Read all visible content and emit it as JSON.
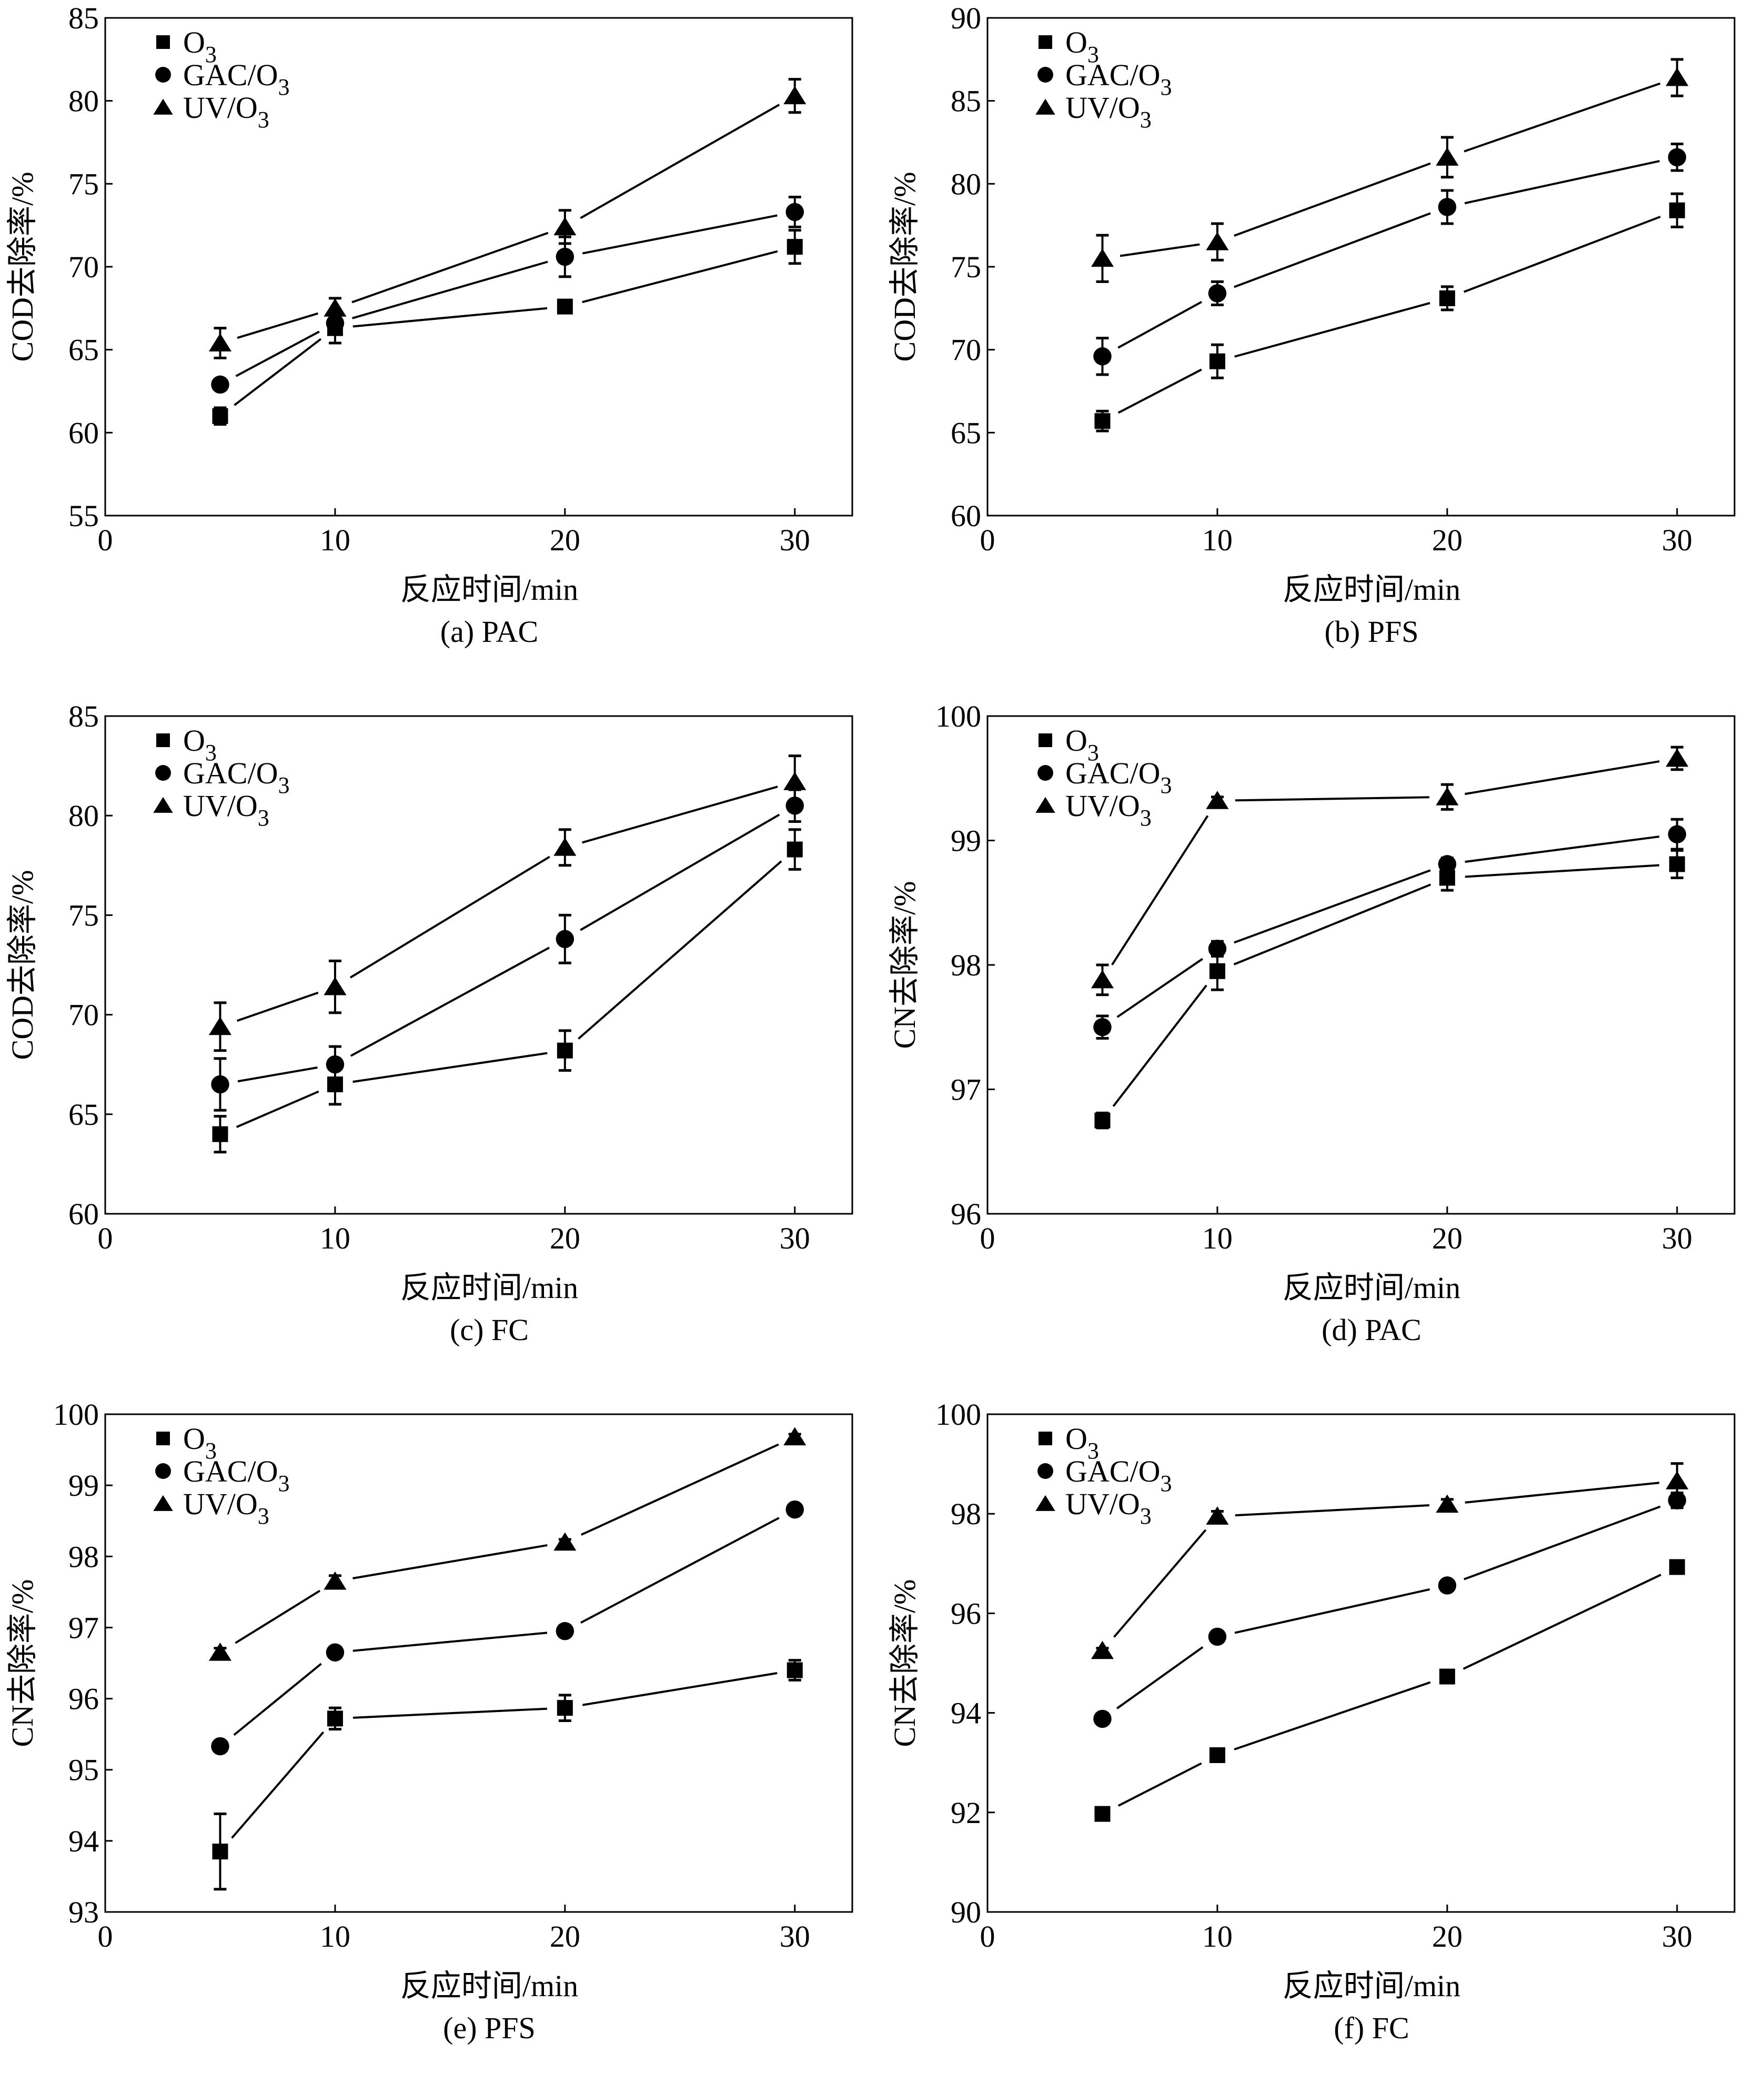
{
  "chart_data": [
    {
      "id": "a",
      "type": "line",
      "caption": "(a) PAC",
      "xlabel": "反应时间/min",
      "ylabel": "COD去除率/%",
      "x": [
        5,
        10,
        20,
        30
      ],
      "xlim": [
        0,
        32.5
      ],
      "xticks": [
        0,
        10,
        20,
        30
      ],
      "ylim": [
        55,
        85
      ],
      "yticks": [
        55,
        60,
        65,
        70,
        75,
        80,
        85
      ],
      "grid": false,
      "legend_position": "top-left",
      "series": [
        {
          "name": "O3",
          "label_main": "O",
          "label_sub": "3",
          "marker": "square",
          "values": [
            61.0,
            66.3,
            67.6,
            71.2
          ],
          "errors": [
            0.5,
            0.9,
            0.3,
            1.0
          ]
        },
        {
          "name": "GAC/O3",
          "label_main": "GAC/O",
          "label_sub": "3",
          "marker": "circle",
          "values": [
            62.9,
            66.6,
            70.6,
            73.3
          ],
          "errors": [
            0.3,
            0.5,
            1.2,
            0.9
          ]
        },
        {
          "name": "UV/O3",
          "label_main": "UV/O",
          "label_sub": "3",
          "marker": "triangle",
          "values": [
            65.4,
            67.5,
            72.4,
            80.3
          ],
          "errors": [
            0.9,
            0.6,
            1.0,
            1.0
          ]
        }
      ]
    },
    {
      "id": "b",
      "type": "line",
      "caption": "(b) PFS",
      "xlabel": "反应时间/min",
      "ylabel": "COD去除率/%",
      "x": [
        5,
        10,
        20,
        30
      ],
      "xlim": [
        0,
        32.5
      ],
      "xticks": [
        0,
        10,
        20,
        30
      ],
      "ylim": [
        60,
        90
      ],
      "yticks": [
        60,
        65,
        70,
        75,
        80,
        85,
        90
      ],
      "grid": false,
      "legend_position": "top-left",
      "series": [
        {
          "name": "O3",
          "label_main": "O",
          "label_sub": "3",
          "marker": "square",
          "values": [
            65.7,
            69.3,
            73.1,
            78.4
          ],
          "errors": [
            0.6,
            1.0,
            0.7,
            1.0
          ]
        },
        {
          "name": "GAC/O3",
          "label_main": "GAC/O",
          "label_sub": "3",
          "marker": "circle",
          "values": [
            69.6,
            73.4,
            78.6,
            81.6
          ],
          "errors": [
            1.1,
            0.7,
            1.0,
            0.8
          ]
        },
        {
          "name": "UV/O3",
          "label_main": "UV/O",
          "label_sub": "3",
          "marker": "triangle",
          "values": [
            75.5,
            76.5,
            81.6,
            86.4
          ],
          "errors": [
            1.4,
            1.1,
            1.2,
            1.1
          ]
        }
      ]
    },
    {
      "id": "c",
      "type": "line",
      "caption": "(c) FC",
      "xlabel": "反应时间/min",
      "ylabel": "COD去除率/%",
      "x": [
        5,
        10,
        20,
        30
      ],
      "xlim": [
        0,
        32.5
      ],
      "xticks": [
        0,
        10,
        20,
        30
      ],
      "ylim": [
        60,
        85
      ],
      "yticks": [
        60,
        65,
        70,
        75,
        80,
        85
      ],
      "grid": false,
      "legend_position": "top-left",
      "series": [
        {
          "name": "O3",
          "label_main": "O",
          "label_sub": "3",
          "marker": "square",
          "values": [
            64.0,
            66.5,
            68.2,
            78.3
          ],
          "errors": [
            0.9,
            1.0,
            1.0,
            1.0
          ]
        },
        {
          "name": "GAC/O3",
          "label_main": "GAC/O",
          "label_sub": "3",
          "marker": "circle",
          "values": [
            66.5,
            67.5,
            73.8,
            80.5
          ],
          "errors": [
            1.3,
            0.9,
            1.2,
            0.8
          ]
        },
        {
          "name": "UV/O3",
          "label_main": "UV/O",
          "label_sub": "3",
          "marker": "triangle",
          "values": [
            69.4,
            71.4,
            78.4,
            81.7
          ],
          "errors": [
            1.2,
            1.3,
            0.9,
            1.3
          ]
        }
      ]
    },
    {
      "id": "d",
      "type": "line",
      "caption": "(d) PAC",
      "xlabel": "反应时间/min",
      "ylabel": "CN去除率/%",
      "x": [
        5,
        10,
        20,
        30
      ],
      "xlim": [
        0,
        32.5
      ],
      "xticks": [
        0,
        10,
        20,
        30
      ],
      "ylim": [
        96,
        100
      ],
      "yticks": [
        96,
        97,
        98,
        99,
        100
      ],
      "grid": false,
      "legend_position": "top-left",
      "series": [
        {
          "name": "O3",
          "label_main": "O",
          "label_sub": "3",
          "marker": "square",
          "values": [
            96.75,
            97.95,
            98.7,
            98.81
          ],
          "errors": [
            0.06,
            0.15,
            0.1,
            0.11
          ]
        },
        {
          "name": "GAC/O3",
          "label_main": "GAC/O",
          "label_sub": "3",
          "marker": "circle",
          "values": [
            97.5,
            98.13,
            98.81,
            99.05
          ],
          "errors": [
            0.09,
            0.06,
            0.05,
            0.12
          ]
        },
        {
          "name": "UV/O3",
          "label_main": "UV/O",
          "label_sub": "3",
          "marker": "triangle",
          "values": [
            97.88,
            99.32,
            99.35,
            99.66
          ],
          "errors": [
            0.12,
            0.03,
            0.1,
            0.09
          ]
        }
      ]
    },
    {
      "id": "e",
      "type": "line",
      "caption": "(e) PFS",
      "xlabel": "反应时间/min",
      "ylabel": "CN去除率/%",
      "x": [
        5,
        10,
        20,
        30
      ],
      "xlim": [
        0,
        32.5
      ],
      "xticks": [
        0,
        10,
        20,
        30
      ],
      "ylim": [
        93,
        100
      ],
      "yticks": [
        93,
        94,
        95,
        96,
        97,
        98,
        99,
        100
      ],
      "grid": false,
      "legend_position": "top-left",
      "series": [
        {
          "name": "O3",
          "label_main": "O",
          "label_sub": "3",
          "marker": "square",
          "values": [
            93.85,
            95.72,
            95.87,
            96.4
          ],
          "errors": [
            0.53,
            0.15,
            0.18,
            0.14
          ]
        },
        {
          "name": "GAC/O3",
          "label_main": "GAC/O",
          "label_sub": "3",
          "marker": "circle",
          "values": [
            95.33,
            96.65,
            96.95,
            98.66
          ],
          "errors": [
            0.06,
            0.06,
            0.06,
            0.06
          ]
        },
        {
          "name": "UV/O3",
          "label_main": "UV/O",
          "label_sub": "3",
          "marker": "triangle",
          "values": [
            96.65,
            97.65,
            98.2,
            99.68
          ],
          "errors": [
            0.06,
            0.08,
            0.04,
            0.04
          ]
        }
      ]
    },
    {
      "id": "f",
      "type": "line",
      "caption": "(f) FC",
      "xlabel": "反应时间/min",
      "ylabel": "CN去除率/%",
      "x": [
        5,
        10,
        20,
        30
      ],
      "xlim": [
        0,
        32.5
      ],
      "xticks": [
        0,
        10,
        20,
        30
      ],
      "ylim": [
        90,
        100
      ],
      "yticks": [
        90,
        92,
        94,
        96,
        98,
        100
      ],
      "grid": false,
      "legend_position": "top-left",
      "series": [
        {
          "name": "O3",
          "label_main": "O",
          "label_sub": "3",
          "marker": "square",
          "values": [
            91.97,
            93.15,
            94.73,
            96.93
          ],
          "errors": [
            0.08,
            0.08,
            0.08,
            0.1
          ]
        },
        {
          "name": "GAC/O3",
          "label_main": "GAC/O",
          "label_sub": "3",
          "marker": "circle",
          "values": [
            93.88,
            95.53,
            96.56,
            98.27
          ],
          "errors": [
            0.08,
            0.08,
            0.08,
            0.15
          ]
        },
        {
          "name": "UV/O3",
          "label_main": "UV/O",
          "label_sub": "3",
          "marker": "triangle",
          "values": [
            95.25,
            97.95,
            98.19,
            98.66
          ],
          "errors": [
            0.05,
            0.1,
            0.1,
            0.35
          ]
        }
      ]
    }
  ]
}
